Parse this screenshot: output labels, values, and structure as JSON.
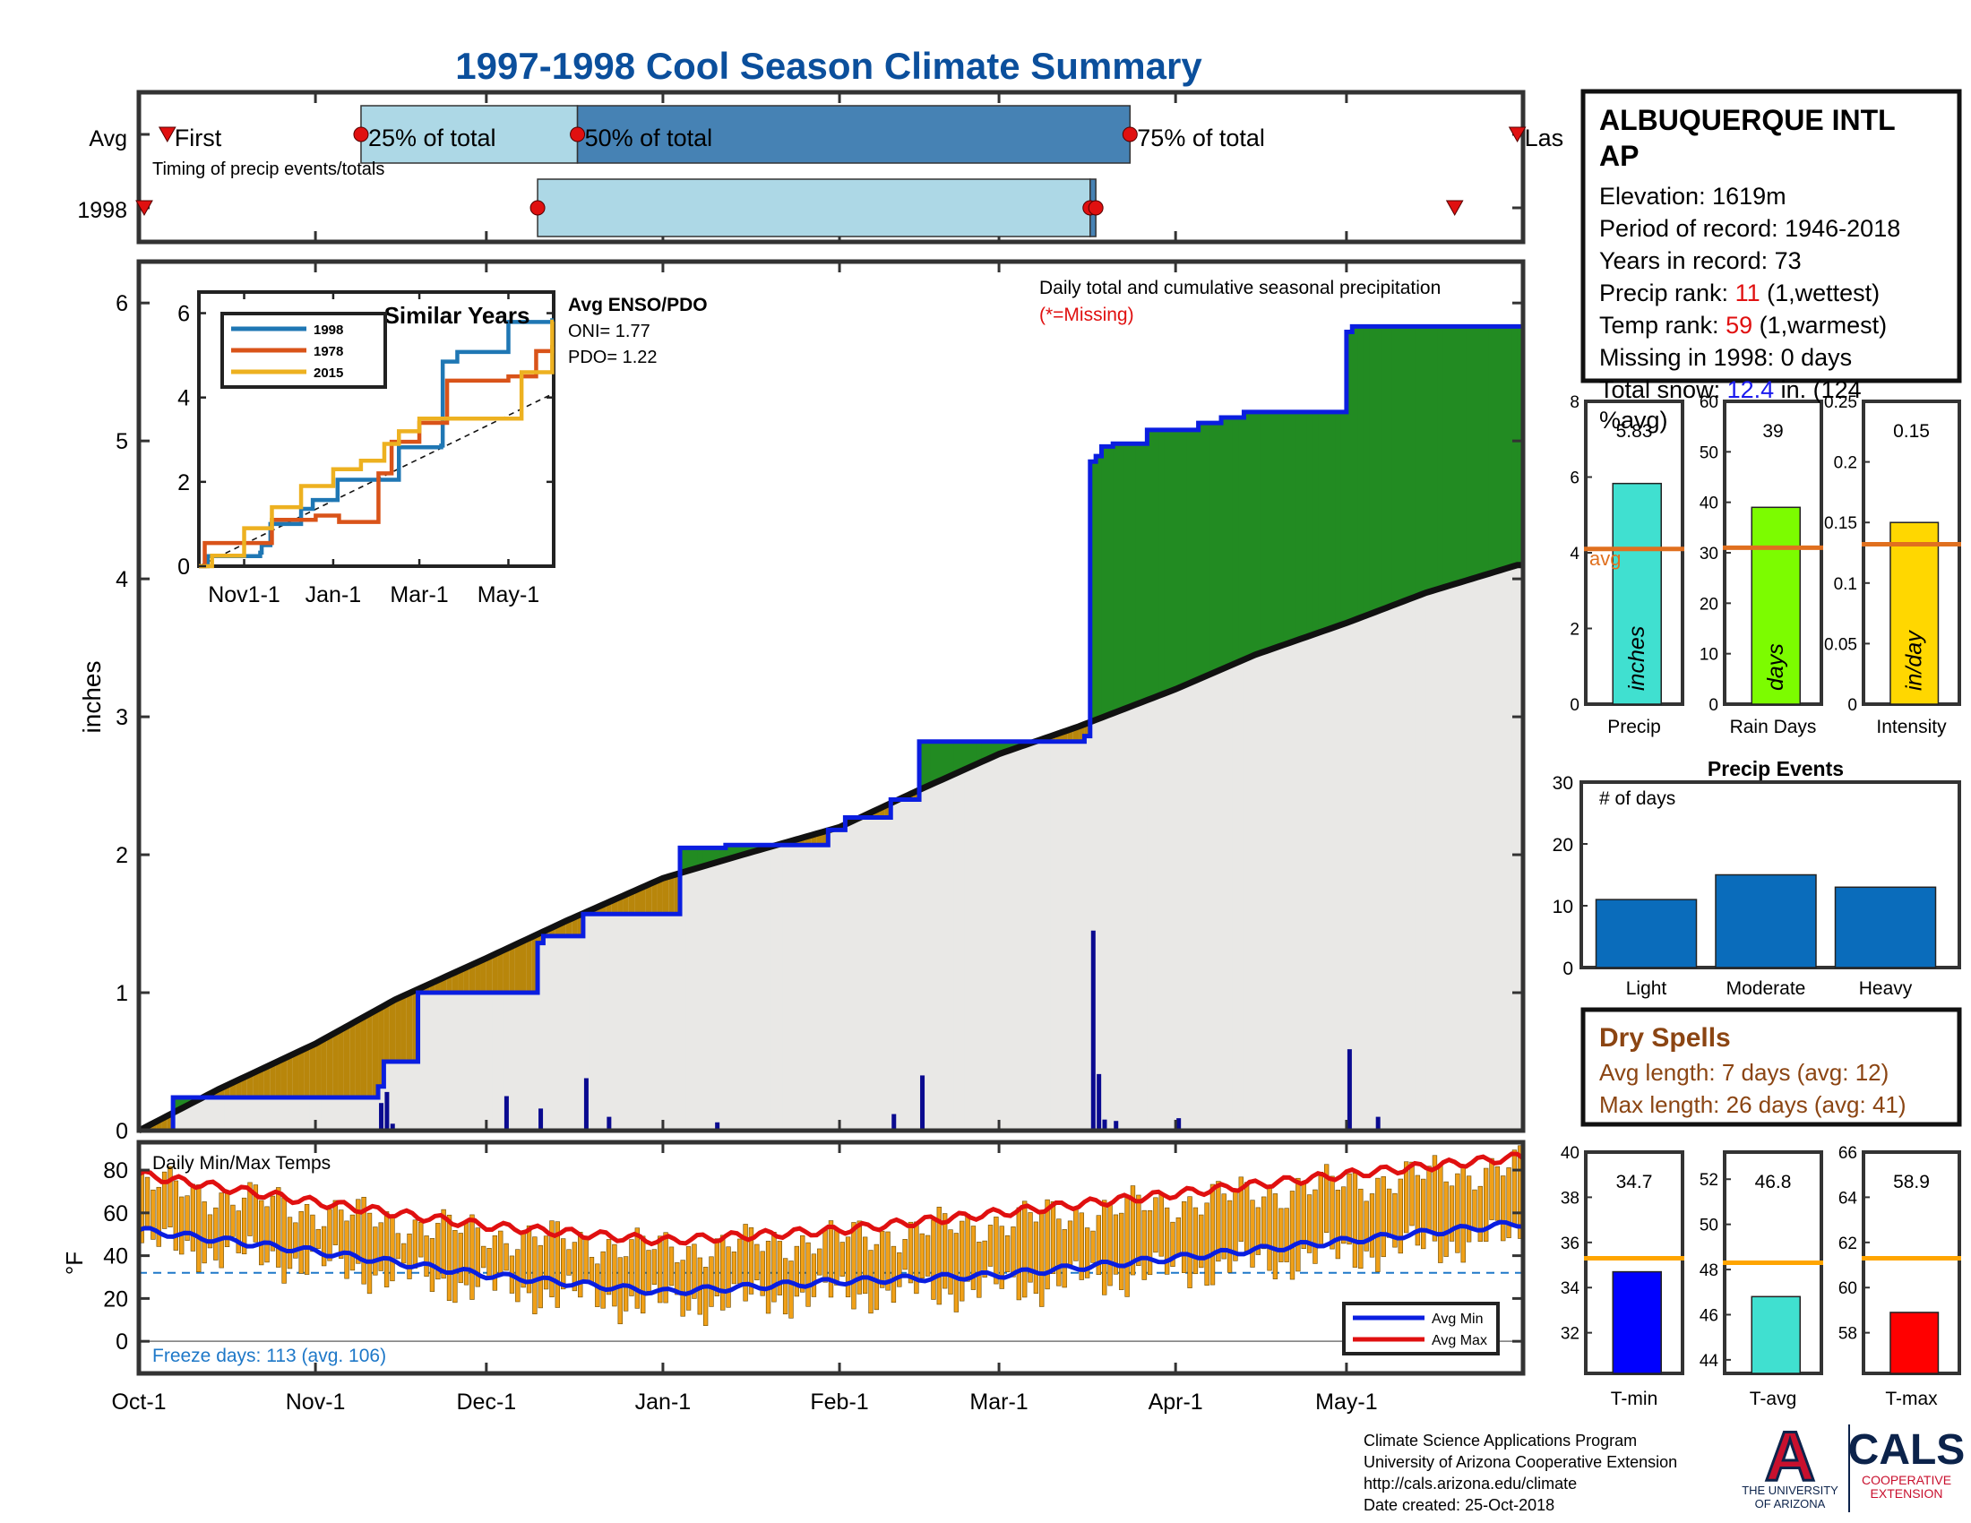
{
  "title": "1997-1998 Cool Season Climate Summary",
  "colors": {
    "title": "#0b4f9c",
    "frame": "#333333",
    "light_blue": "#add8e6",
    "steel_blue": "#4682b4",
    "cum_1998": "#0a1ee0",
    "avg_line": "#111111",
    "green_fill": "#228b22",
    "gold_fill": "#b8860b",
    "avg_fill": "#e9e8e6",
    "daily_bar": "#0a0a90",
    "temp_bar": "#f0a018",
    "avg_min": "#0a1ee0",
    "avg_max": "#e01010",
    "freeze_line": "#1e78c8",
    "bar_precip": "#40e0d0",
    "bar_days": "#7cfc00",
    "bar_intensity": "#ffd700",
    "avg_orange": "#e0701f",
    "events_bar": "#0a6cbb",
    "dry_spells": "#8b4513",
    "tmin_bar": "#0000ff",
    "tavg_bar": "#40e0d0",
    "tmax_bar": "#ff0000",
    "temp_avg_line": "#ffa500",
    "missing_red": "#e01010",
    "rank_red": "#e01010",
    "snow_blue": "#1a1aee",
    "ua_red": "#c8102e",
    "ua_navy": "#0c234b"
  },
  "timing": {
    "caption": "Timing of precip events/totals",
    "row_labels": [
      "Avg",
      "1998"
    ],
    "avg_labels": [
      "First",
      "25% of total",
      "50% of total",
      "75% of total",
      "Las"
    ],
    "avg_points": {
      "first": "Oct-6",
      "p25": "Nov-9",
      "p50": "Dec-17",
      "p75": "Mar-24",
      "last": "May-31"
    },
    "y1998_points": {
      "first": "Oct-1",
      "p25": "Dec-10",
      "p50": "Mar-17",
      "p75": "Mar-18",
      "last": "May-20"
    }
  },
  "main": {
    "ylabel": "inches",
    "yticks": [
      "0",
      "1",
      "2",
      "3",
      "4",
      "5",
      "6"
    ],
    "xticks": [
      "Oct-1",
      "Nov-1",
      "Dec-1",
      "Jan-1",
      "Feb-1",
      "Mar-1",
      "Apr-1",
      "May-1"
    ],
    "legend_text": "Daily total and cumulative seasonal precipitation",
    "missing_note": "(*=Missing)"
  },
  "inset": {
    "title": "Similar Years",
    "yticks": [
      "0",
      "2",
      "4",
      "6"
    ],
    "xticks": [
      "Nov1-1",
      "Jan-1",
      "Mar-1",
      "May-1"
    ],
    "enso_title": "Avg ENSO/PDO",
    "oni": "ONI= 1.77",
    "pdo": "PDO= 1.22"
  },
  "temps": {
    "title": "Daily Min/Max Temps",
    "ylabel": "°F",
    "yticks": [
      "0",
      "20",
      "40",
      "60",
      "80"
    ],
    "freeze_text": "Freeze days: 113 (avg. 106)",
    "legend": [
      "Avg Min",
      "Avg Max"
    ]
  },
  "station": {
    "name_line1": "ALBUQUERQUE INTL",
    "name_line2": "AP",
    "elevation": "Elevation: 1619m",
    "period": "Period of record: 1946-2018",
    "years": "Years in record: 73",
    "precip_rank_label": "Precip rank: ",
    "precip_rank_value": "11",
    "precip_rank_note": " (1,wettest)",
    "temp_rank_label": "Temp rank: ",
    "temp_rank_value": "59",
    "temp_rank_note": " (1,warmest)",
    "missing": "Missing in 1998: 0 days",
    "snow_label": "Total snow: ",
    "snow_value": "12.4",
    "snow_note": " in. (124",
    "snow_pct": "%avg)"
  },
  "precip_bars": {
    "precip": {
      "label": "Precip",
      "unit": "inches",
      "value_text": "5.83",
      "value": 5.83,
      "avg": 4.1,
      "avg_label": "avg",
      "yticks": [
        "0",
        "2",
        "4",
        "6",
        "8"
      ],
      "ymax": 8
    },
    "days": {
      "label": "Rain Days",
      "unit": "days",
      "value_text": "39",
      "value": 39,
      "avg": 31,
      "yticks": [
        "0",
        "10",
        "20",
        "30",
        "40",
        "50",
        "60"
      ],
      "ymax": 60
    },
    "intensity": {
      "label": "Intensity",
      "unit": "in/day",
      "value_text": "0.15",
      "value": 0.15,
      "avg": 0.132,
      "yticks": [
        "0",
        "0.05",
        "0.1",
        "0.15",
        "0.2",
        "0.25"
      ],
      "ymax": 0.25
    }
  },
  "events": {
    "title": "Precip Events",
    "ylabel": "# of days",
    "yticks": [
      "0",
      "10",
      "20",
      "30"
    ],
    "categories": [
      "Light",
      "Moderate",
      "Heavy"
    ],
    "values": [
      11,
      15,
      13
    ]
  },
  "dry_spells": {
    "title": "Dry Spells",
    "avg_length": "Avg length: 7 days (avg: 12)",
    "max_length": "Max length: 26 days (avg: 41)"
  },
  "temp_bars": {
    "tmin": {
      "label": "T-min",
      "value_text": "34.7",
      "value": 34.7,
      "avg": 35.3,
      "ymin": 30.2,
      "ymax": 40,
      "yticks": [
        "32",
        "34",
        "36",
        "38",
        "40"
      ]
    },
    "tavg": {
      "label": "T-avg",
      "value_text": "46.8",
      "value": 46.8,
      "avg": 48.3,
      "ymin": 43.4,
      "ymax": 53.2,
      "yticks": [
        "44",
        "46",
        "48",
        "50",
        "52"
      ]
    },
    "tmax": {
      "label": "T-max",
      "value_text": "58.9",
      "value": 58.9,
      "avg": 61.3,
      "ymin": 56.2,
      "ymax": 66,
      "yticks": [
        "58",
        "60",
        "62",
        "64",
        "66"
      ]
    }
  },
  "footer": {
    "line1": "Climate Science Applications Program",
    "line2": "University of Arizona Cooperative Extension",
    "line3": "http://cals.arizona.edu/climate",
    "line4": " Date created: 25-Oct-2018",
    "ua_text1": "THE UNIVERSITY",
    "ua_text2": "OF ARIZONA",
    "cals": "CALS",
    "cals_sub1": "COOPERATIVE",
    "cals_sub2": "EXTENSION",
    "ua_logo_letter": "A"
  },
  "chart_data": [
    {
      "type": "area",
      "title": "Daily total and cumulative seasonal precipitation",
      "ylabel": "inches",
      "x_unit": "date (Oct-1-1997 to May-31-1998)",
      "ylim": [
        0,
        6.3
      ],
      "x_ticks": [
        "Oct-1",
        "Nov-1",
        "Dec-1",
        "Jan-1",
        "Feb-1",
        "Mar-1",
        "Apr-1",
        "May-1"
      ],
      "series": [
        {
          "name": "1998 cumulative",
          "x": [
            "Oct-1",
            "Oct-7",
            "Nov-12",
            "Nov-13",
            "Nov-19",
            "Dec-10",
            "Dec-11",
            "Dec-18",
            "Jan-4",
            "Jan-12",
            "Jan-30",
            "Feb-2",
            "Feb-10",
            "Feb-15",
            "Mar-16",
            "Mar-17",
            "Mar-18",
            "Mar-19",
            "Mar-21",
            "Mar-27",
            "Apr-5",
            "Apr-9",
            "Apr-13",
            "May-1",
            "May-2",
            "May-31"
          ],
          "y": [
            0.0,
            0.24,
            0.32,
            0.5,
            1.0,
            1.36,
            1.41,
            1.57,
            2.05,
            2.07,
            2.18,
            2.27,
            2.4,
            2.82,
            2.86,
            4.85,
            4.89,
            4.96,
            4.98,
            5.08,
            5.13,
            5.17,
            5.21,
            5.79,
            5.83,
            5.83
          ]
        },
        {
          "name": "Avg cumulative",
          "x": [
            "Oct-1",
            "Oct-15",
            "Nov-1",
            "Nov-15",
            "Dec-1",
            "Dec-15",
            "Jan-1",
            "Jan-15",
            "Feb-1",
            "Feb-15",
            "Mar-1",
            "Mar-15",
            "Apr-1",
            "Apr-15",
            "May-1",
            "May-15",
            "May-31"
          ],
          "y": [
            0.0,
            0.3,
            0.63,
            0.95,
            1.25,
            1.52,
            1.83,
            2.0,
            2.2,
            2.47,
            2.73,
            2.93,
            3.2,
            3.45,
            3.68,
            3.9,
            4.1
          ]
        },
        {
          "name": "Daily total",
          "x": [
            "Nov-12",
            "Nov-13",
            "Nov-14",
            "Dec-4",
            "Dec-10",
            "Dec-18",
            "Dec-22",
            "Jan-10",
            "Feb-10",
            "Feb-15",
            "Mar-17",
            "Mar-18",
            "Mar-19",
            "Mar-21",
            "Apr-1",
            "May-1",
            "May-6"
          ],
          "y": [
            0.2,
            0.28,
            0.05,
            0.25,
            0.16,
            0.38,
            0.1,
            0.06,
            0.12,
            0.4,
            1.45,
            0.41,
            0.08,
            0.07,
            0.09,
            0.59,
            0.1
          ]
        }
      ]
    },
    {
      "type": "line",
      "title": "Similar Years",
      "x_ticks": [
        "Nov1-1",
        "Jan-1",
        "Mar-1",
        "May-1"
      ],
      "ylim": [
        0,
        6.5
      ],
      "series": [
        {
          "name": "1998",
          "color": "#1f77b4",
          "x": [
            "Oct-1",
            "Oct-7",
            "Nov-12",
            "Nov-13",
            "Nov-19",
            "Dec-10",
            "Dec-18",
            "Jan-4",
            "Feb-15",
            "Mar-16",
            "Mar-17",
            "Mar-27",
            "May-1",
            "May-31"
          ],
          "y": [
            0.0,
            0.24,
            0.32,
            0.5,
            1.0,
            1.36,
            1.57,
            2.05,
            2.82,
            2.86,
            4.85,
            5.08,
            5.79,
            5.83
          ]
        },
        {
          "name": "1978",
          "color": "#d95319",
          "x": [
            "Oct-1",
            "Oct-5",
            "Nov-5",
            "Nov-20",
            "Dec-20",
            "Jan-5",
            "Feb-1",
            "Feb-10",
            "Mar-1",
            "Mar-20",
            "May-1",
            "May-20",
            "May-31"
          ],
          "y": [
            0.0,
            0.55,
            0.55,
            1.1,
            1.2,
            1.05,
            2.2,
            2.95,
            3.4,
            4.4,
            4.5,
            5.1,
            5.2
          ]
        },
        {
          "name": "2015",
          "color": "#edb120",
          "x": [
            "Oct-1",
            "Oct-10",
            "Nov-1",
            "Nov-20",
            "Dec-10",
            "Jan-1",
            "Jan-20",
            "Feb-5",
            "Feb-15",
            "Mar-1",
            "Apr-15",
            "May-10",
            "May-31"
          ],
          "y": [
            0.0,
            0.25,
            0.9,
            1.4,
            1.9,
            2.3,
            2.5,
            2.9,
            3.2,
            3.5,
            3.5,
            4.6,
            5.8
          ]
        }
      ]
    },
    {
      "type": "bar",
      "title": "Daily Min/Max Temps",
      "ylabel": "°F",
      "ylim": [
        -15,
        93
      ],
      "series": [
        {
          "name": "Avg Min",
          "x": [
            "Oct-1",
            "Nov-1",
            "Dec-1",
            "Jan-1",
            "Feb-1",
            "Mar-1",
            "Apr-1",
            "May-1",
            "May-31"
          ],
          "y": [
            52,
            42,
            31,
            23,
            28,
            31,
            39,
            47,
            55
          ]
        },
        {
          "name": "Avg Max",
          "x": [
            "Oct-1",
            "Nov-1",
            "Dec-1",
            "Jan-1",
            "Feb-1",
            "Mar-1",
            "Apr-1",
            "May-1",
            "May-31"
          ],
          "y": [
            78,
            65,
            54,
            47,
            52,
            60,
            69,
            78,
            86
          ]
        },
        {
          "name": "Freeze line",
          "x": [
            "Oct-1",
            "May-31"
          ],
          "y": [
            32,
            32
          ]
        }
      ]
    },
    {
      "type": "bar",
      "title": "Precip Events",
      "categories": [
        "Light",
        "Moderate",
        "Heavy"
      ],
      "values": [
        11,
        15,
        13
      ],
      "ylabel": "# of days",
      "ylim": [
        0,
        30
      ]
    },
    {
      "type": "bar",
      "categories": [
        "Precip",
        "Rain Days",
        "Intensity"
      ],
      "values": [
        5.83,
        39,
        0.15
      ]
    },
    {
      "type": "bar",
      "categories": [
        "T-min",
        "T-avg",
        "T-max"
      ],
      "values": [
        34.7,
        46.8,
        58.9
      ]
    }
  ]
}
